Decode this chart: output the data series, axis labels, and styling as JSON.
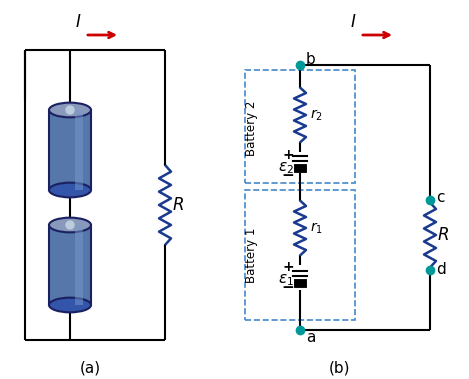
{
  "bg_color": "#ffffff",
  "wire_color": "#000000",
  "resistor_color": "#1a3a8f",
  "node_color": "#009999",
  "arrow_color": "#cc0000",
  "dashed_box_color": "#4488cc",
  "label_a": "(a)",
  "label_b": "(b)",
  "current_label": "I",
  "node_labels": [
    "a",
    "b",
    "c",
    "d"
  ],
  "battery_labels": [
    "Battery 1",
    "Battery 2"
  ],
  "emf_labels": [
    "ε₁",
    "ε₂"
  ],
  "r_labels": [
    "r₁",
    "r₂"
  ],
  "R_label": "R",
  "plus_minus": [
    "+",
    "-"
  ]
}
